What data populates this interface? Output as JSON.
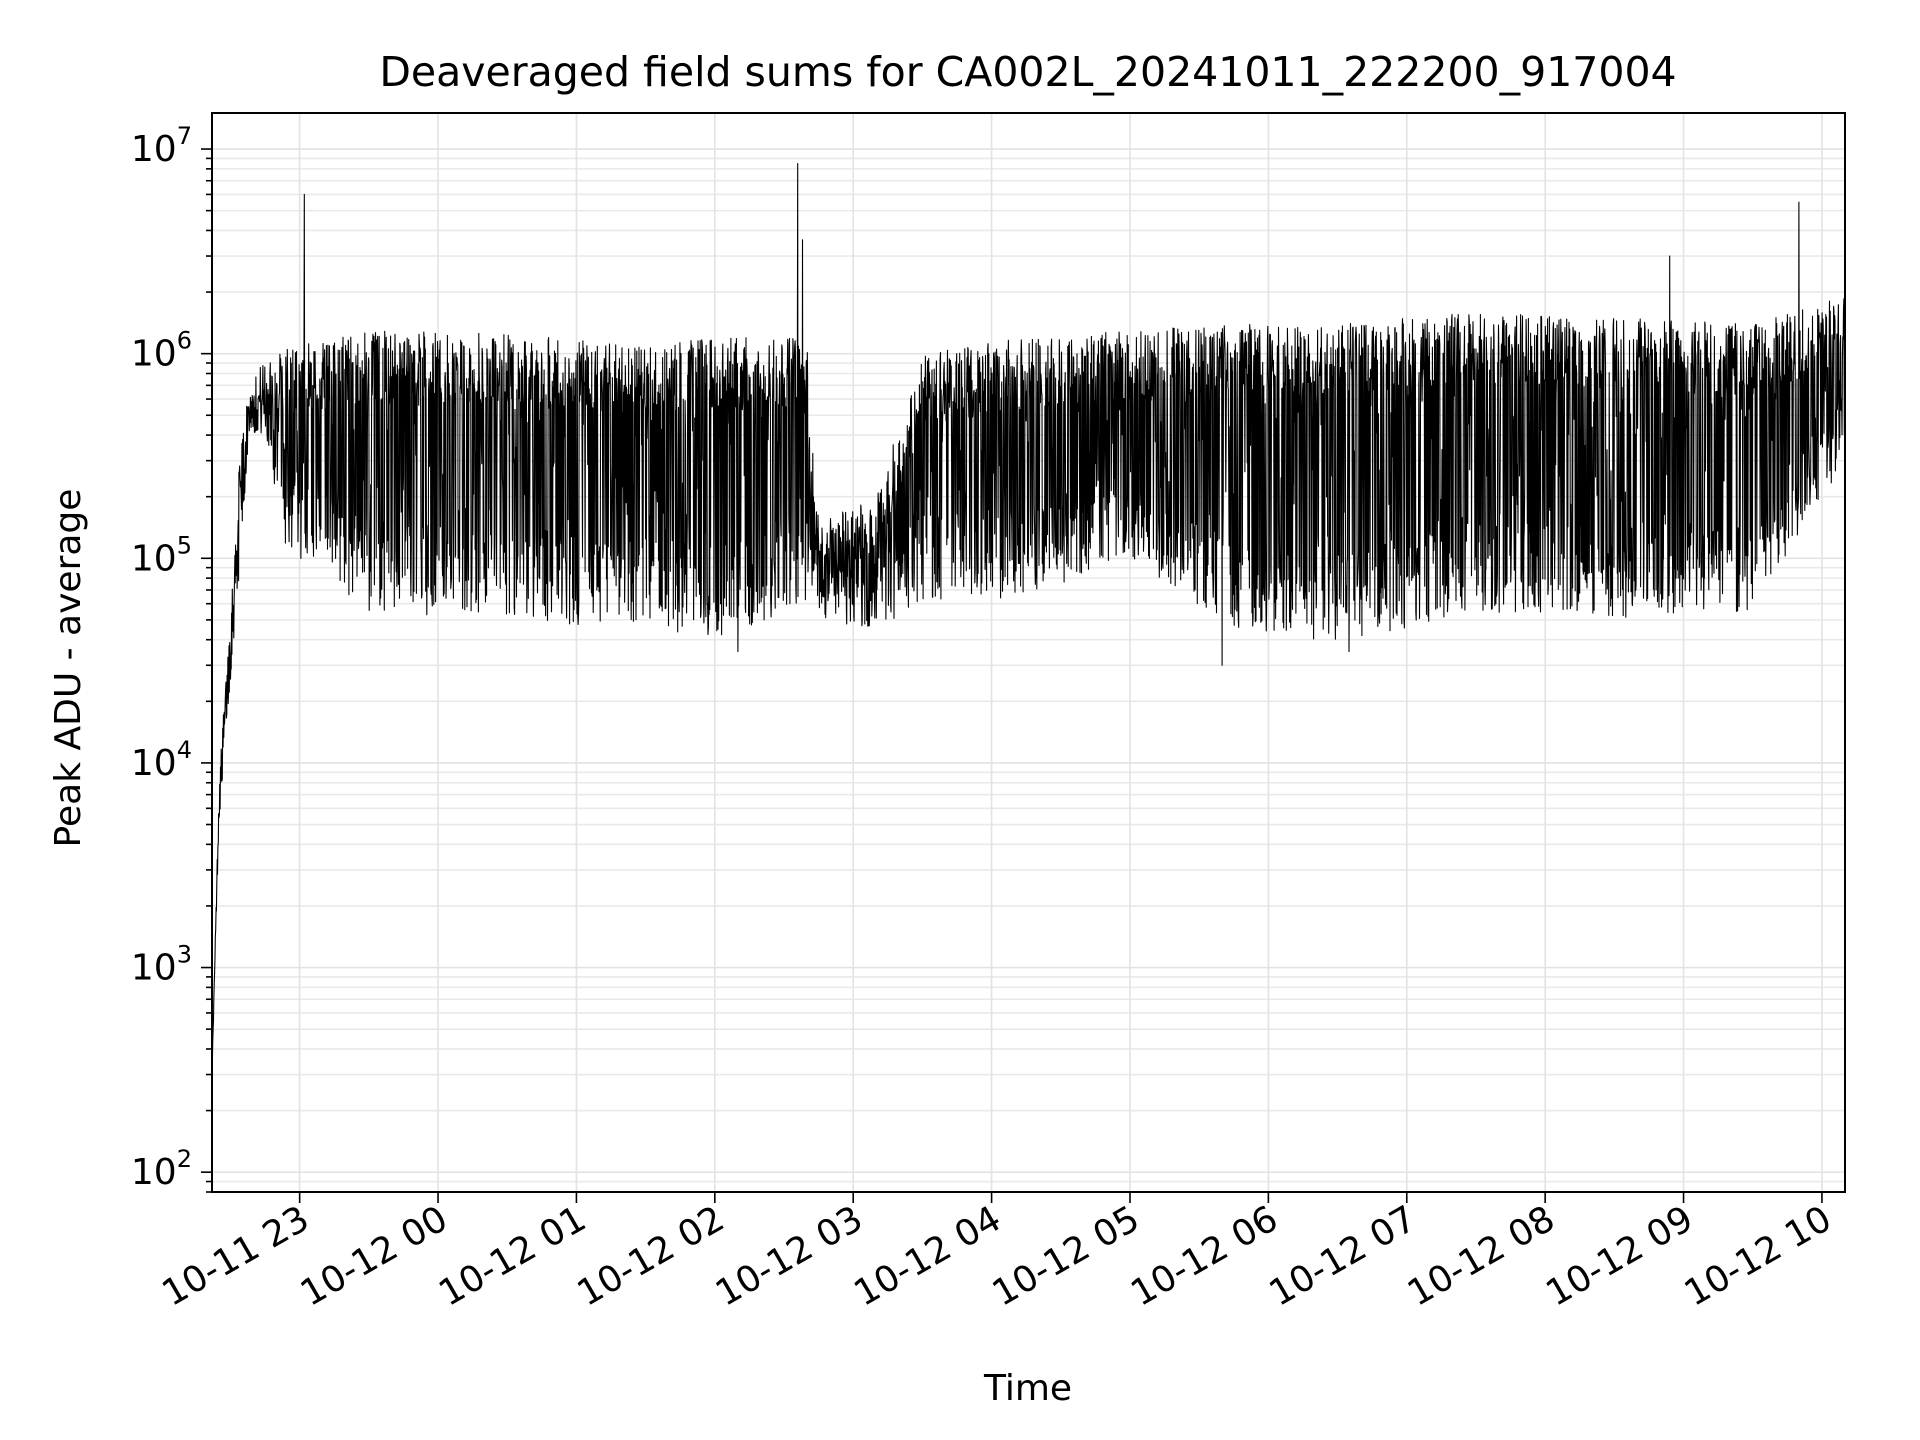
{
  "chart_data": {
    "type": "line",
    "title": "Deaveraged field sums for CA002L_20241011_222200_917004",
    "xlabel": "Time",
    "ylabel": "Peak ADU - average",
    "yscale": "log",
    "x_range": [
      "2024-10-11 22:22",
      "2024-10-12 10:10"
    ],
    "ylim": [
      80,
      15000000
    ],
    "grid": true,
    "line_color": "#000000",
    "x_ticks": [
      {
        "label": "10-11 23",
        "time": "2024-10-11 23:00"
      },
      {
        "label": "10-12 00",
        "time": "2024-10-12 00:00"
      },
      {
        "label": "10-12 01",
        "time": "2024-10-12 01:00"
      },
      {
        "label": "10-12 02",
        "time": "2024-10-12 02:00"
      },
      {
        "label": "10-12 03",
        "time": "2024-10-12 03:00"
      },
      {
        "label": "10-12 04",
        "time": "2024-10-12 04:00"
      },
      {
        "label": "10-12 05",
        "time": "2024-10-12 05:00"
      },
      {
        "label": "10-12 06",
        "time": "2024-10-12 06:00"
      },
      {
        "label": "10-12 07",
        "time": "2024-10-12 07:00"
      },
      {
        "label": "10-12 08",
        "time": "2024-10-12 08:00"
      },
      {
        "label": "10-12 09",
        "time": "2024-10-12 09:00"
      },
      {
        "label": "10-12 10",
        "time": "2024-10-12 10:00"
      }
    ],
    "y_ticks": [
      {
        "base": "10",
        "exp": "2",
        "value": 100
      },
      {
        "base": "10",
        "exp": "3",
        "value": 1000
      },
      {
        "base": "10",
        "exp": "4",
        "value": 10000
      },
      {
        "base": "10",
        "exp": "5",
        "value": 100000
      },
      {
        "base": "10",
        "exp": "6",
        "value": 1000000
      },
      {
        "base": "10",
        "exp": "7",
        "value": 10000000
      }
    ],
    "envelope": [
      {
        "time": "2024-10-11 22:22",
        "high": 300,
        "low": 300
      },
      {
        "time": "2024-10-11 22:25",
        "high": 8000,
        "low": 5000
      },
      {
        "time": "2024-10-11 22:30",
        "high": 60000,
        "low": 25000
      },
      {
        "time": "2024-10-11 22:34",
        "high": 300000,
        "low": 90000
      },
      {
        "time": "2024-10-11 22:38",
        "high": 700000,
        "low": 400000
      },
      {
        "time": "2024-10-11 22:45",
        "high": 950000,
        "low": 400000
      },
      {
        "time": "2024-10-11 22:55",
        "high": 1100000,
        "low": 100000
      },
      {
        "time": "2024-10-11 23:30",
        "high": 1300000,
        "low": 55000
      },
      {
        "time": "2024-10-12 00:30",
        "high": 1250000,
        "low": 50000
      },
      {
        "time": "2024-10-12 01:30",
        "high": 1100000,
        "low": 45000
      },
      {
        "time": "2024-10-12 02:00",
        "high": 1200000,
        "low": 40000
      },
      {
        "time": "2024-10-12 02:40",
        "high": 1200000,
        "low": 60000
      },
      {
        "time": "2024-10-12 02:45",
        "high": 150000,
        "low": 50000
      },
      {
        "time": "2024-10-12 03:10",
        "high": 200000,
        "low": 45000
      },
      {
        "time": "2024-10-12 03:30",
        "high": 1000000,
        "low": 60000
      },
      {
        "time": "2024-10-12 04:15",
        "high": 1200000,
        "low": 65000
      },
      {
        "time": "2024-10-12 05:00",
        "high": 1300000,
        "low": 100000
      },
      {
        "time": "2024-10-12 05:45",
        "high": 1400000,
        "low": 45000
      },
      {
        "time": "2024-10-12 06:30",
        "high": 1400000,
        "low": 38000
      },
      {
        "time": "2024-10-12 07:30",
        "high": 1600000,
        "low": 55000
      },
      {
        "time": "2024-10-12 08:30",
        "high": 1500000,
        "low": 50000
      },
      {
        "time": "2024-10-12 09:30",
        "high": 1400000,
        "low": 55000
      },
      {
        "time": "2024-10-12 10:10",
        "high": 1900000,
        "low": 300000
      }
    ],
    "spikes": [
      {
        "time": "2024-10-11 23:02",
        "value": 6000000
      },
      {
        "time": "2024-10-12 02:36",
        "value": 8500000
      },
      {
        "time": "2024-10-12 02:38",
        "value": 3600000
      },
      {
        "time": "2024-10-12 08:54",
        "value": 3000000
      },
      {
        "time": "2024-10-12 09:50",
        "value": 5500000
      }
    ],
    "dips": [
      {
        "time": "2024-10-12 05:40",
        "value": 30000
      },
      {
        "time": "2024-10-12 02:10",
        "value": 35000
      },
      {
        "time": "2024-10-12 06:35",
        "value": 35000
      }
    ]
  }
}
